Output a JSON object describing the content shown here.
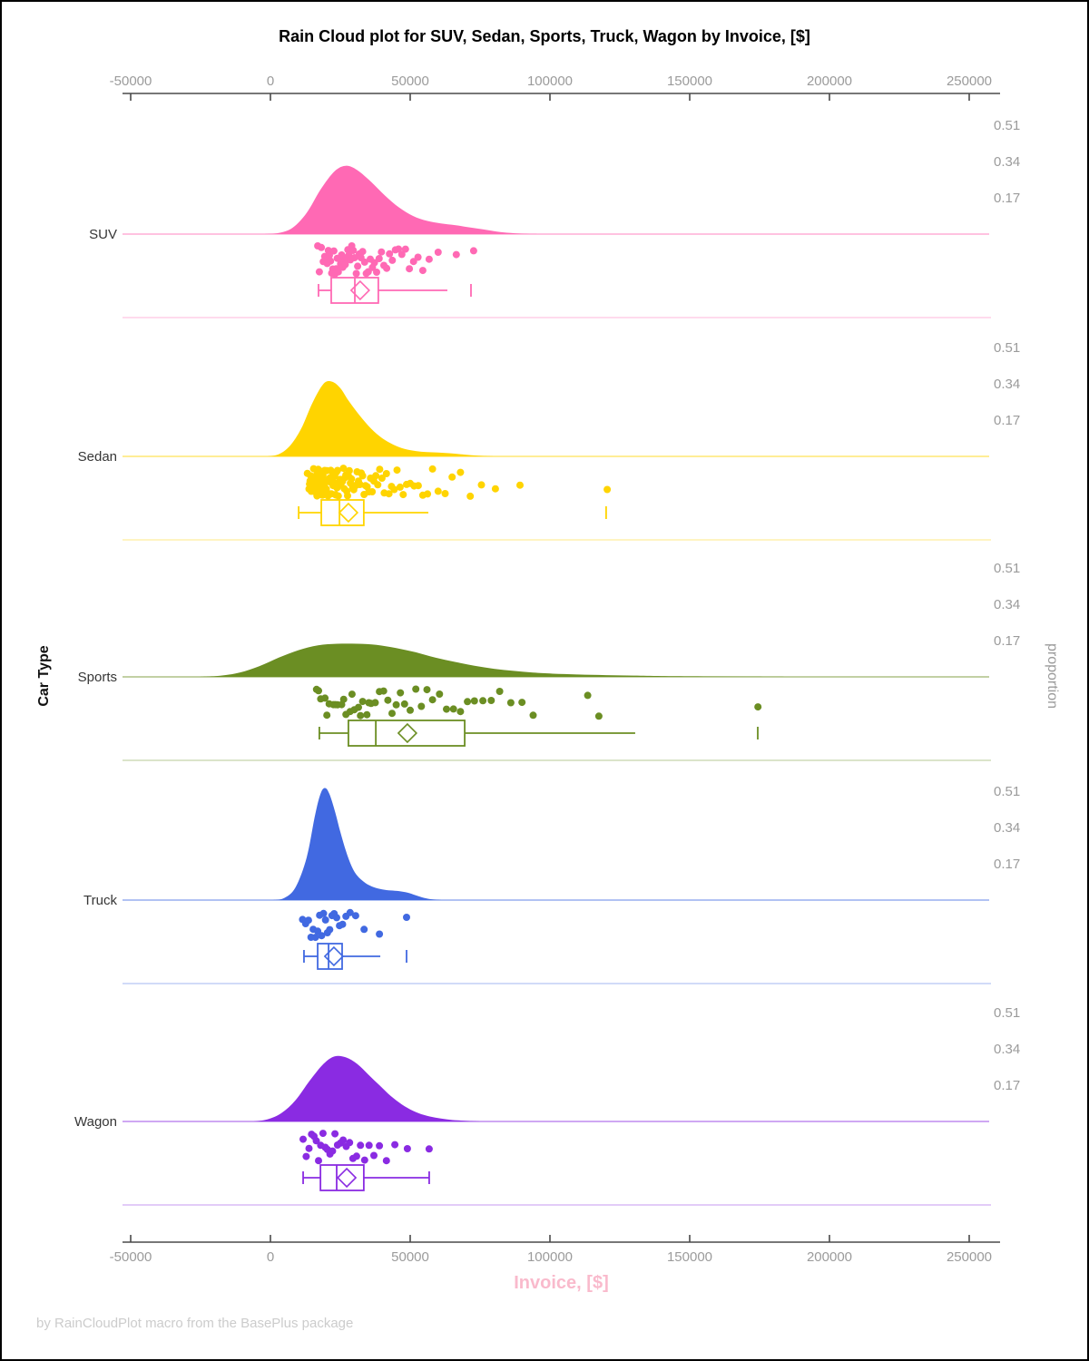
{
  "title": "Rain Cloud plot for SUV, Sedan, Sports, Truck, Wagon by Invoice, [$]",
  "footer": "by RainCloudPlot macro from the BasePlus package",
  "y_axis_left_label": "Car Type",
  "y_axis_right_label": "proportion",
  "proportion_ticks": [
    "0.51",
    "0.34",
    "0.17"
  ],
  "x_axis": {
    "label": "Invoice, [$]",
    "tick_values": [
      -50000,
      0,
      50000,
      100000,
      150000,
      200000,
      250000
    ],
    "tick_labels": [
      "-50000",
      "0",
      "50000",
      "100000",
      "150000",
      "200000",
      "250000"
    ]
  },
  "colors": {
    "suv": "#FF69B4",
    "sedan": "#FFD400",
    "sports": "#6B8E23",
    "truck": "#4169E1",
    "wagon": "#8A2BE2",
    "axis_line": "#4a4a4a",
    "tick_label": "#9b9b9b",
    "category_label": "#363636",
    "proportion_label": "#9b9b9b",
    "x_axis_label": "#F9BACC",
    "footer_text": "#cccccc",
    "title_text": "#000000"
  },
  "chart_data": {
    "type": "raincloud",
    "x_variable": "Invoice [$]",
    "y_variable": "Car Type",
    "proportion_scale": [
      0.17,
      0.34,
      0.51
    ],
    "categories": [
      "SUV",
      "Sedan",
      "Sports",
      "Truck",
      "Wagon"
    ],
    "series": [
      {
        "name": "SUV",
        "color_key": "suv",
        "density": [
          [
            -2000,
            0
          ],
          [
            3000,
            0.005
          ],
          [
            8000,
            0.03
          ],
          [
            13000,
            0.1
          ],
          [
            18000,
            0.21
          ],
          [
            23000,
            0.295
          ],
          [
            27000,
            0.32
          ],
          [
            31000,
            0.3
          ],
          [
            36000,
            0.245
          ],
          [
            41000,
            0.18
          ],
          [
            46000,
            0.125
          ],
          [
            51000,
            0.085
          ],
          [
            56000,
            0.062
          ],
          [
            61000,
            0.05
          ],
          [
            66000,
            0.042
          ],
          [
            71000,
            0.032
          ],
          [
            76000,
            0.022
          ],
          [
            81000,
            0.012
          ],
          [
            86000,
            0.005
          ],
          [
            92000,
            0.001
          ],
          [
            97000,
            0
          ]
        ],
        "points": [
          16900,
          17500,
          18200,
          18900,
          19400,
          19800,
          20300,
          20700,
          21100,
          21500,
          21900,
          22300,
          22700,
          23100,
          23500,
          23900,
          24300,
          24700,
          25100,
          25500,
          25900,
          26300,
          26800,
          27200,
          27700,
          28100,
          28600,
          29100,
          29600,
          30100,
          30700,
          31200,
          31800,
          32400,
          33000,
          33700,
          34300,
          35000,
          35700,
          36500,
          37200,
          38000,
          38900,
          39700,
          40600,
          41600,
          42600,
          43600,
          44700,
          45800,
          47000,
          48300,
          49700,
          51200,
          52800,
          54500,
          56800,
          60000,
          66500,
          72700
        ],
        "box": {
          "whisker_low": 17200,
          "q1": 21750,
          "median": 30200,
          "mean": 32100,
          "q3": 38600,
          "whisker_high": 63300,
          "outliers": [
            71750
          ]
        }
      },
      {
        "name": "Sedan",
        "color_key": "sedan",
        "density": [
          [
            -1000,
            0
          ],
          [
            3000,
            0.01
          ],
          [
            7000,
            0.05
          ],
          [
            11000,
            0.13
          ],
          [
            15000,
            0.25
          ],
          [
            19000,
            0.34
          ],
          [
            22000,
            0.35
          ],
          [
            25000,
            0.32
          ],
          [
            28000,
            0.26
          ],
          [
            32000,
            0.19
          ],
          [
            36000,
            0.13
          ],
          [
            40000,
            0.085
          ],
          [
            44000,
            0.055
          ],
          [
            48000,
            0.035
          ],
          [
            52000,
            0.025
          ],
          [
            56000,
            0.02
          ],
          [
            60000,
            0.018
          ],
          [
            64000,
            0.015
          ],
          [
            68000,
            0.01
          ],
          [
            72000,
            0.005
          ],
          [
            76000,
            0.002
          ],
          [
            80000,
            0
          ]
        ],
        "points": [
          13200,
          13800,
          14000,
          14200,
          14400,
          14600,
          14800,
          15000,
          15100,
          15300,
          15450,
          15600,
          15750,
          15900,
          16050,
          16200,
          16350,
          16500,
          16650,
          16800,
          16900,
          17000,
          17100,
          17200,
          17300,
          17400,
          17500,
          17600,
          17700,
          17800,
          17900,
          18000,
          18100,
          18200,
          18300,
          18400,
          18500,
          18600,
          18700,
          18800,
          18900,
          19000,
          19200,
          19400,
          19600,
          19800,
          20000,
          20200,
          20400,
          20600,
          20800,
          21000,
          21200,
          21400,
          21600,
          21800,
          22000,
          22200,
          22400,
          22600,
          22800,
          23000,
          23200,
          23400,
          23600,
          23800,
          24000,
          24300,
          24600,
          24900,
          25200,
          25500,
          25800,
          26100,
          26400,
          26700,
          27000,
          27300,
          27600,
          27900,
          28200,
          28600,
          29000,
          29400,
          29800,
          30200,
          30600,
          31000,
          31500,
          32000,
          32500,
          33000,
          33500,
          34000,
          34600,
          35200,
          35800,
          36400,
          37000,
          37700,
          38400,
          39100,
          39900,
          40700,
          41500,
          42400,
          43300,
          44300,
          45300,
          46400,
          47500,
          48700,
          50000,
          51400,
          52900,
          54500,
          56200,
          58000,
          60000,
          62500,
          65000,
          68000,
          71500,
          75500,
          80500,
          89300,
          120500
        ],
        "box": {
          "whisker_low": 10100,
          "q1": 18200,
          "median": 24700,
          "mean": 27900,
          "q3": 33400,
          "whisker_high": 56500,
          "outliers": [
            120100
          ]
        }
      },
      {
        "name": "Sports",
        "color_key": "sports",
        "density": [
          [
            -25000,
            0
          ],
          [
            -18000,
            0.005
          ],
          [
            -11000,
            0.02
          ],
          [
            -4000,
            0.05
          ],
          [
            3000,
            0.09
          ],
          [
            10000,
            0.125
          ],
          [
            17000,
            0.148
          ],
          [
            24000,
            0.155
          ],
          [
            31000,
            0.155
          ],
          [
            38000,
            0.15
          ],
          [
            45000,
            0.135
          ],
          [
            52000,
            0.115
          ],
          [
            59000,
            0.09
          ],
          [
            66000,
            0.07
          ],
          [
            73000,
            0.052
          ],
          [
            80000,
            0.038
          ],
          [
            87000,
            0.028
          ],
          [
            94000,
            0.02
          ],
          [
            101000,
            0.015
          ],
          [
            110000,
            0.011
          ],
          [
            120000,
            0.008
          ],
          [
            130000,
            0.006
          ],
          [
            140000,
            0.004
          ],
          [
            155000,
            0.002
          ],
          [
            170000,
            0.001
          ],
          [
            185000,
            0
          ]
        ],
        "points": [
          16500,
          17200,
          18000,
          19500,
          20200,
          21000,
          22500,
          23200,
          24000,
          25500,
          26200,
          27000,
          28500,
          29200,
          30000,
          31500,
          32200,
          33000,
          34500,
          35200,
          36000,
          37500,
          39000,
          40500,
          42000,
          43500,
          45000,
          46500,
          48000,
          50000,
          52000,
          54000,
          56000,
          58000,
          60500,
          63000,
          65500,
          68000,
          70500,
          73000,
          76000,
          79000,
          82000,
          86000,
          90000,
          94000,
          113500,
          117500,
          174400
        ],
        "box": {
          "whisker_low": 17500,
          "q1": 27900,
          "median": 37700,
          "mean": 49000,
          "q3": 69500,
          "whisker_high": 130500,
          "outliers": [
            174350
          ]
        }
      },
      {
        "name": "Truck",
        "color_key": "truck",
        "density": [
          [
            1000,
            0
          ],
          [
            5000,
            0.01
          ],
          [
            9000,
            0.06
          ],
          [
            13000,
            0.2
          ],
          [
            16000,
            0.4
          ],
          [
            18000,
            0.5
          ],
          [
            19500,
            0.525
          ],
          [
            21000,
            0.5
          ],
          [
            23000,
            0.42
          ],
          [
            25000,
            0.32
          ],
          [
            27000,
            0.23
          ],
          [
            29000,
            0.16
          ],
          [
            31000,
            0.115
          ],
          [
            34000,
            0.08
          ],
          [
            37000,
            0.06
          ],
          [
            40000,
            0.05
          ],
          [
            43000,
            0.045
          ],
          [
            46000,
            0.042
          ],
          [
            49000,
            0.035
          ],
          [
            52000,
            0.022
          ],
          [
            55000,
            0.01
          ],
          [
            58000,
            0.003
          ],
          [
            61000,
            0
          ]
        ],
        "points": [
          11500,
          12600,
          13600,
          14500,
          15300,
          16100,
          16900,
          17600,
          18300,
          19000,
          19700,
          20400,
          21200,
          22000,
          22800,
          23700,
          24700,
          25800,
          27000,
          28500,
          30500,
          33500,
          39000,
          48700
        ],
        "box": {
          "whisker_low": 12000,
          "q1": 16900,
          "median": 20800,
          "mean": 22700,
          "q3": 25650,
          "whisker_high": 39300,
          "outliers": [
            48700
          ]
        }
      },
      {
        "name": "Wagon",
        "color_key": "wagon",
        "density": [
          [
            -6000,
            0
          ],
          [
            -1000,
            0.01
          ],
          [
            4000,
            0.04
          ],
          [
            9000,
            0.1
          ],
          [
            14000,
            0.19
          ],
          [
            19000,
            0.27
          ],
          [
            23000,
            0.305
          ],
          [
            27000,
            0.3
          ],
          [
            31000,
            0.27
          ],
          [
            35000,
            0.22
          ],
          [
            39000,
            0.17
          ],
          [
            43000,
            0.12
          ],
          [
            47000,
            0.08
          ],
          [
            51000,
            0.05
          ],
          [
            55000,
            0.03
          ],
          [
            59000,
            0.018
          ],
          [
            63000,
            0.01
          ],
          [
            67000,
            0.005
          ],
          [
            71000,
            0.002
          ],
          [
            75000,
            0
          ]
        ],
        "points": [
          11700,
          12800,
          13800,
          14700,
          15600,
          16400,
          17200,
          18000,
          18800,
          19600,
          20400,
          21300,
          22200,
          23100,
          24000,
          25000,
          26000,
          27100,
          28300,
          29500,
          30800,
          32200,
          33700,
          35300,
          37000,
          39000,
          41500,
          44500,
          49000,
          56800
        ],
        "box": {
          "whisker_low": 11700,
          "q1": 17900,
          "median": 23700,
          "mean": 27300,
          "q3": 33400,
          "whisker_high": 56800,
          "outliers": []
        }
      }
    ]
  }
}
